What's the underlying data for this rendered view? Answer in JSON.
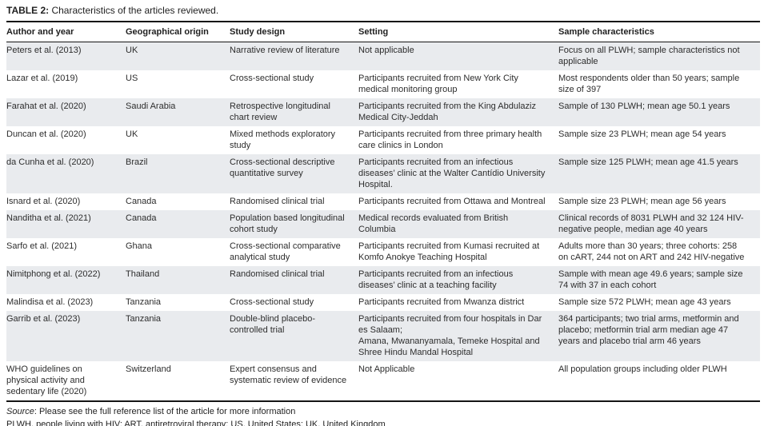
{
  "title": {
    "label": "TABLE 2:",
    "text": " Characteristics of the articles reviewed."
  },
  "table": {
    "columns": [
      "Author and year",
      "Geographical origin",
      "Study design",
      "Setting",
      "Sample characteristics"
    ],
    "fields": [
      "author",
      "origin",
      "design",
      "setting",
      "sample"
    ],
    "rows": [
      {
        "author": "Peters et al. (2013)",
        "origin": "UK",
        "design": "Narrative review of literature",
        "setting": "Not applicable",
        "sample": "Focus on all PLWH; sample characteristics not applicable"
      },
      {
        "author": "Lazar et al. (2019)",
        "origin": "US",
        "design": "Cross-sectional study",
        "setting": "Participants recruited from New York City medical monitoring group",
        "sample": "Most respondents older than 50 years; sample size of 397"
      },
      {
        "author": "Farahat et al. (2020)",
        "origin": "Saudi Arabia",
        "design": "Retrospective longitudinal chart review",
        "setting": "Participants recruited from the King Abdulaziz Medical City-Jeddah",
        "sample": "Sample of 130 PLWH; mean age 50.1 years"
      },
      {
        "author": "Duncan et al. (2020)",
        "origin": "UK",
        "design": "Mixed methods exploratory study",
        "setting": "Participants recruited from three primary health care clinics in London",
        "sample": "Sample size 23 PLWH; mean age 54 years"
      },
      {
        "author": "da Cunha et al. (2020)",
        "origin": "Brazil",
        "design": "Cross-sectional descriptive quantitative survey",
        "setting": "Participants recruited from an infectious diseases’ clinic at the Walter Cantídio University Hospital.",
        "sample": "Sample size 125 PLWH; mean age 41.5 years"
      },
      {
        "author": "Isnard et al. (2020)",
        "origin": "Canada",
        "design": "Randomised clinical trial",
        "setting": "Participants recruited from Ottawa and Montreal",
        "sample": "Sample size 23 PLWH; mean age 56 years"
      },
      {
        "author": "Nanditha et al. (2021)",
        "origin": "Canada",
        "design": "Population based longitudinal cohort study",
        "setting": "Medical records evaluated from British Columbia",
        "sample": "Clinical records of 8031 PLWH and 32 124 HIV-negative people, median age 40 years"
      },
      {
        "author": "Sarfo et al. (2021)",
        "origin": "Ghana",
        "design": "Cross-sectional comparative analytical study",
        "setting": "Participants recruited from Kumasi recruited at Komfo Anokye Teaching Hospital",
        "sample": "Adults more than 30 years; three cohorts: 258 on cART, 244 not on ART and 242 HIV-negative"
      },
      {
        "author": "Nimitphong et al. (2022)",
        "origin": "Thailand",
        "design": "Randomised clinical trial",
        "setting": "Participants recruited from an infectious diseases’ clinic at a teaching facility",
        "sample": "Sample with mean age 49.6 years; sample size 74 with 37 in each cohort"
      },
      {
        "author": "Malindisa et al. (2023)",
        "origin": "Tanzania",
        "design": "Cross-sectional study",
        "setting": "Participants recruited from Mwanza district",
        "sample": "Sample size 572 PLWH; mean age 43 years"
      },
      {
        "author": "Garrib et al. (2023)",
        "origin": "Tanzania",
        "design": "Double-blind placebo-controlled trial",
        "setting": "Participants recruited from four hospitals in Dar es Salaam;\nAmana, Mwananyamala, Temeke Hospital and Shree Hindu Mandal Hospital",
        "sample": "364 participants; two trial arms, metformin and placebo; metformin trial arm median age 47 years and placebo trial arm 46 years"
      },
      {
        "author": "WHO guidelines on physical activity and sedentary life (2020)",
        "origin": "Switzerland",
        "design": "Expert consensus and systematic review of evidence",
        "setting": "Not Applicable",
        "sample": "All population groups including older PLWH"
      }
    ]
  },
  "footer": {
    "source_label": "Source",
    "source_text": ": Please see the full reference list of the article for more information",
    "abbreviations": "PLWH, people living with HIV; ART, antiretroviral therapy; US, United States;  UK, United Kingdom"
  },
  "colors": {
    "stripe": "#e9ebee",
    "rule": "#151515",
    "text": "#2d2d2d"
  }
}
